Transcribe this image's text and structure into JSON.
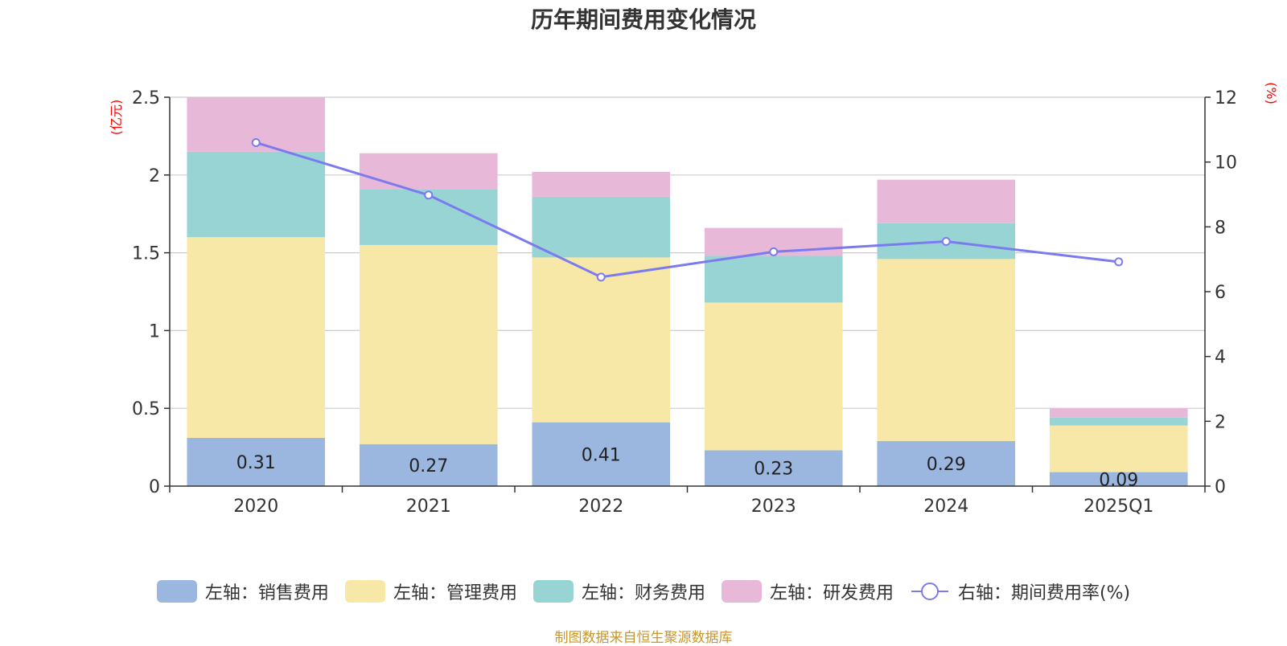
{
  "chart_data": {
    "type": "bar",
    "stacked": true,
    "title": "历年期间费用变化情况",
    "categories": [
      "2020",
      "2021",
      "2022",
      "2023",
      "2024",
      "2025Q1"
    ],
    "ylabel_left": "(亿元)",
    "ylabel_right": "(%)",
    "ylim_left": [
      0,
      2.5
    ],
    "ylim_right": [
      0,
      12
    ],
    "yticks_left": [
      "0",
      "0.5",
      "1",
      "1.5",
      "2",
      "2.5"
    ],
    "yticks_right": [
      "0",
      "2",
      "4",
      "6",
      "8",
      "10",
      "12"
    ],
    "grid": true,
    "legend_position": "bottom",
    "series": [
      {
        "name": "左轴：销售费用",
        "axis": "left",
        "color": "#9bb7e0",
        "values": [
          0.31,
          0.27,
          0.41,
          0.23,
          0.29,
          0.09
        ],
        "labels": [
          "0.31",
          "0.27",
          "0.41",
          "0.23",
          "0.29",
          "0.09"
        ]
      },
      {
        "name": "左轴：管理费用",
        "axis": "left",
        "color": "#f7e8a8",
        "values": [
          1.29,
          1.28,
          1.06,
          0.95,
          1.17,
          0.3
        ]
      },
      {
        "name": "左轴：财务费用",
        "axis": "left",
        "color": "#98d4d4",
        "values": [
          0.55,
          0.36,
          0.39,
          0.3,
          0.23,
          0.05
        ]
      },
      {
        "name": "左轴：研发费用",
        "axis": "left",
        "color": "#e8b8d8",
        "values": [
          0.35,
          0.23,
          0.16,
          0.18,
          0.28,
          0.06
        ]
      },
      {
        "name": "右轴：期间费用率(%)",
        "axis": "right",
        "type": "line",
        "color": "#7b7bef",
        "values": [
          10.6,
          8.98,
          6.45,
          7.23,
          7.55,
          6.92
        ]
      }
    ],
    "source": "制图数据来自恒生聚源数据库"
  }
}
